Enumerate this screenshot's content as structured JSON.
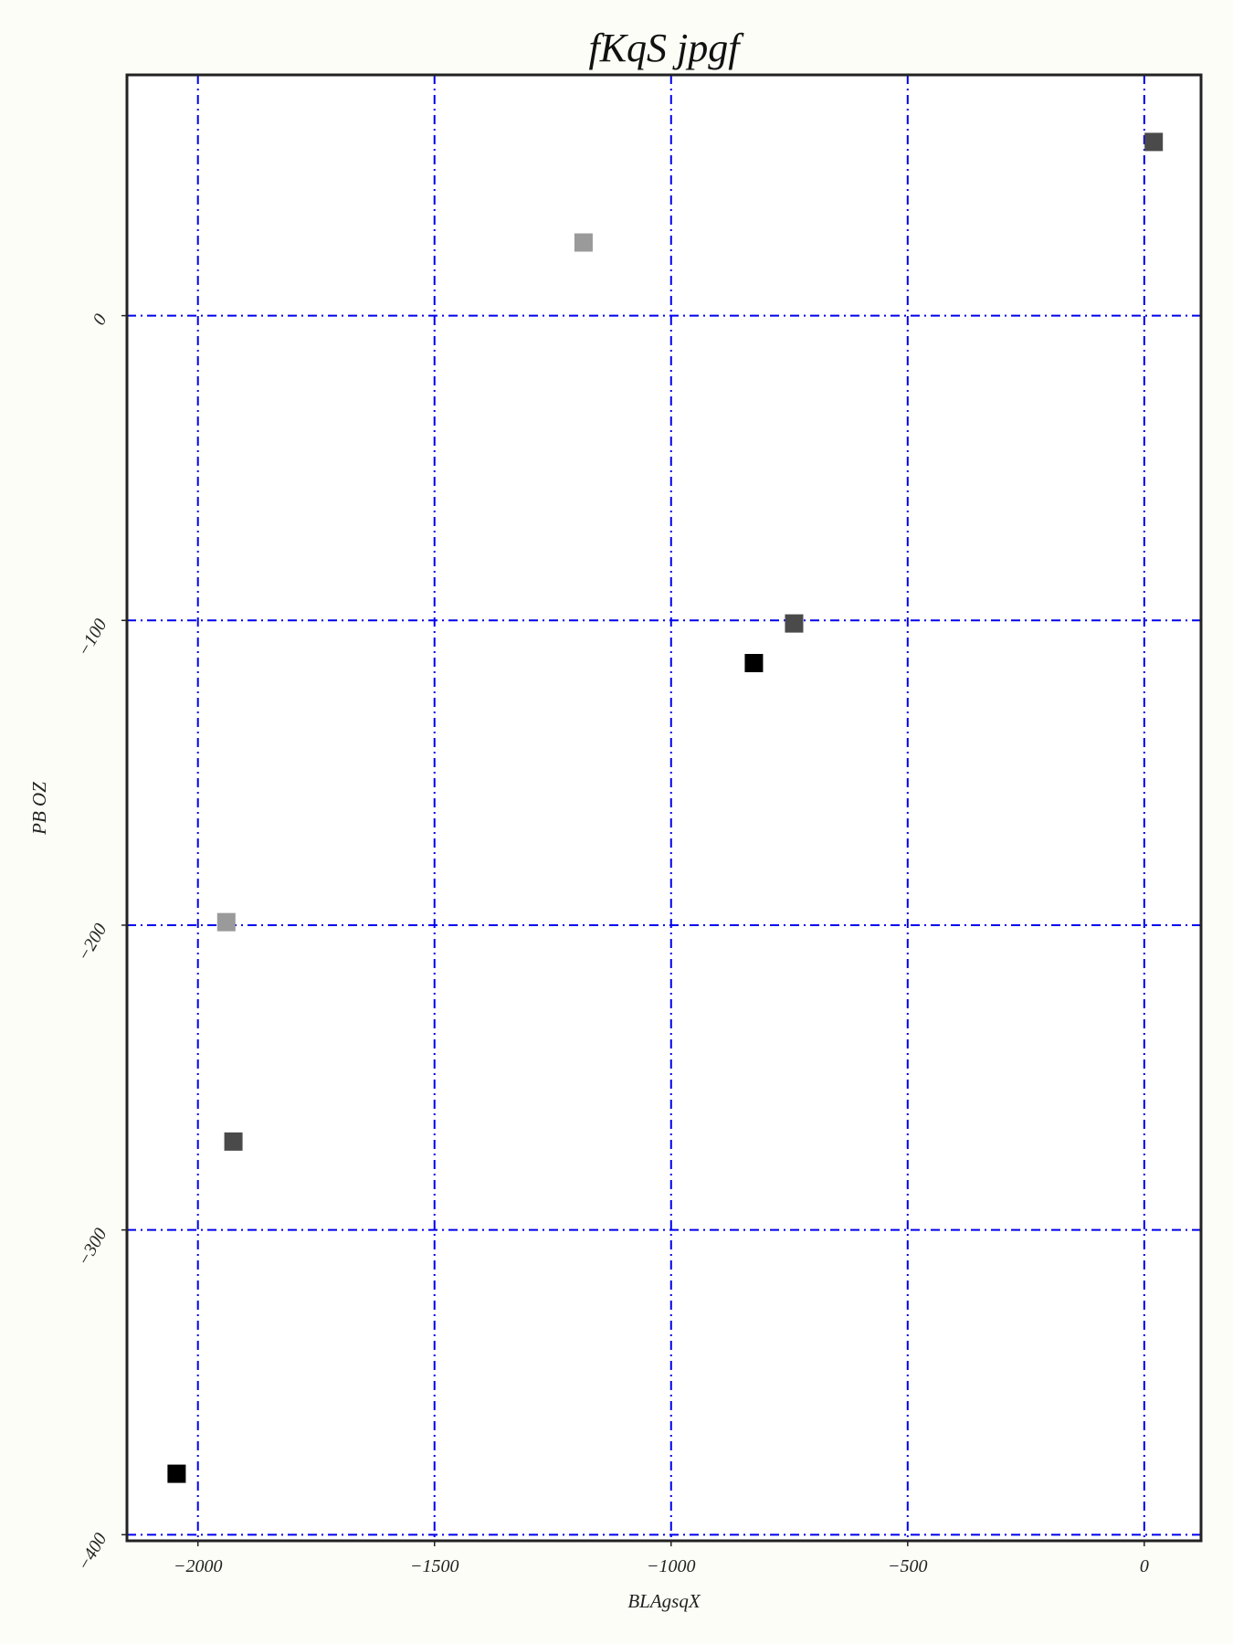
{
  "chart_data": {
    "type": "scatter",
    "title": "fKqS jpgf",
    "xlabel": "BLAgsqX",
    "ylabel": "PB OZ",
    "xlim": [
      -2150,
      120
    ],
    "ylim": [
      -402,
      79
    ],
    "xticks": [
      -2000,
      -1500,
      -1000,
      -500,
      0
    ],
    "yticks": [
      0,
      -100,
      -200,
      -300,
      -400
    ],
    "xtick_labels": [
      "−2000",
      "−1500",
      "−1000",
      "−500",
      "0"
    ],
    "ytick_labels": [
      "0",
      "−100",
      "−200",
      "−300",
      "−400"
    ],
    "grid": true,
    "points": [
      {
        "x": 20,
        "y": 57,
        "color": "#4a4a4a"
      },
      {
        "x": -1185,
        "y": 24,
        "color": "#9a9a9a"
      },
      {
        "x": -740,
        "y": -101,
        "color": "#4a4a4a"
      },
      {
        "x": -825,
        "y": -114,
        "color": "#000000"
      },
      {
        "x": -1940,
        "y": -199,
        "color": "#9a9a9a"
      },
      {
        "x": -1925,
        "y": -271,
        "color": "#4a4a4a"
      },
      {
        "x": -2045,
        "y": -380,
        "color": "#000000"
      }
    ]
  },
  "colors": {
    "background": "#fbfdf6",
    "plot_background": "#ffffff",
    "grid": "#0000ee",
    "frame": "#222222"
  }
}
